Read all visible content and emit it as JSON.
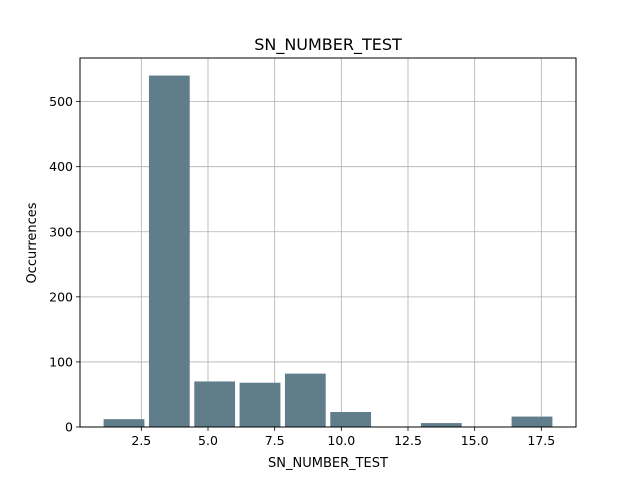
{
  "chart_data": {
    "type": "bar",
    "title": "SN_NUMBER_TEST",
    "xlabel": "SN_NUMBER_TEST",
    "ylabel": "Occurrences",
    "xlim": [
      0.2,
      18.8
    ],
    "ylim": [
      0,
      567
    ],
    "xticks": [
      2.5,
      5.0,
      7.5,
      10.0,
      12.5,
      15.0,
      17.5
    ],
    "xtick_labels": [
      "2.5",
      "5.0",
      "7.5",
      "10.0",
      "12.5",
      "15.0",
      "17.5"
    ],
    "yticks": [
      0,
      100,
      200,
      300,
      400,
      500
    ],
    "ytick_labels": [
      "0",
      "100",
      "200",
      "300",
      "400",
      "500"
    ],
    "grid": true,
    "bar_color": "#607d8b",
    "bins": [
      {
        "start": 1.0,
        "end": 2.7,
        "value": 12
      },
      {
        "start": 2.7,
        "end": 4.4,
        "value": 540
      },
      {
        "start": 4.4,
        "end": 6.1,
        "value": 70
      },
      {
        "start": 6.1,
        "end": 7.8,
        "value": 68
      },
      {
        "start": 7.8,
        "end": 9.5,
        "value": 82
      },
      {
        "start": 9.5,
        "end": 11.2,
        "value": 23
      },
      {
        "start": 11.2,
        "end": 12.9,
        "value": 0
      },
      {
        "start": 12.9,
        "end": 14.6,
        "value": 6
      },
      {
        "start": 14.6,
        "end": 16.3,
        "value": 0
      },
      {
        "start": 16.3,
        "end": 18.0,
        "value": 16
      }
    ]
  }
}
